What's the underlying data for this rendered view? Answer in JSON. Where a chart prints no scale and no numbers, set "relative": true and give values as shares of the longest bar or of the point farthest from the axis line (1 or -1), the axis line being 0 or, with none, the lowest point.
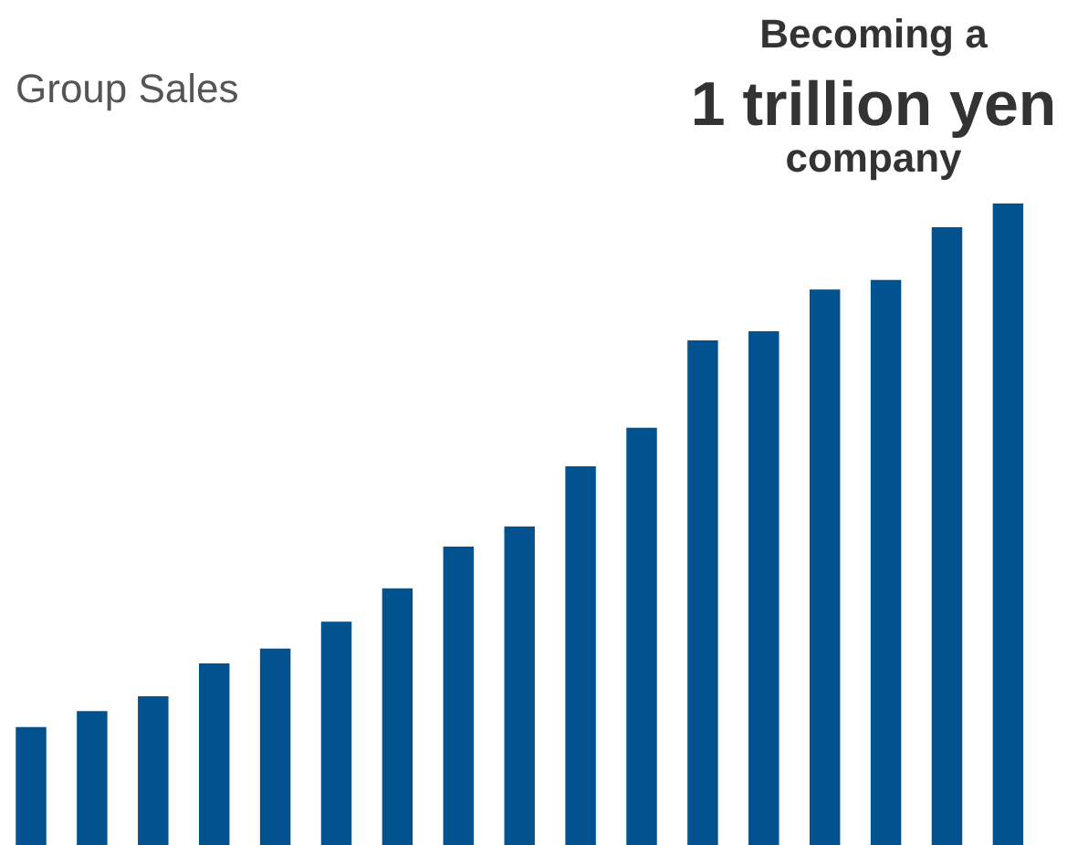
{
  "chart_data": {
    "type": "bar",
    "title": "Group Sales",
    "relative": true,
    "categories": [
      null,
      null,
      null,
      null,
      null,
      null,
      null,
      null,
      null,
      null,
      null,
      null,
      null,
      null,
      null,
      null,
      null
    ],
    "values": [
      0.185,
      0.21,
      0.233,
      0.284,
      0.307,
      0.349,
      0.401,
      0.466,
      0.497,
      0.591,
      0.651,
      0.787,
      0.801,
      0.866,
      0.881,
      0.963,
      1
    ],
    "color": "#01528f",
    "annotations": [
      "Becoming a",
      "1 trillion yen",
      "company"
    ]
  }
}
